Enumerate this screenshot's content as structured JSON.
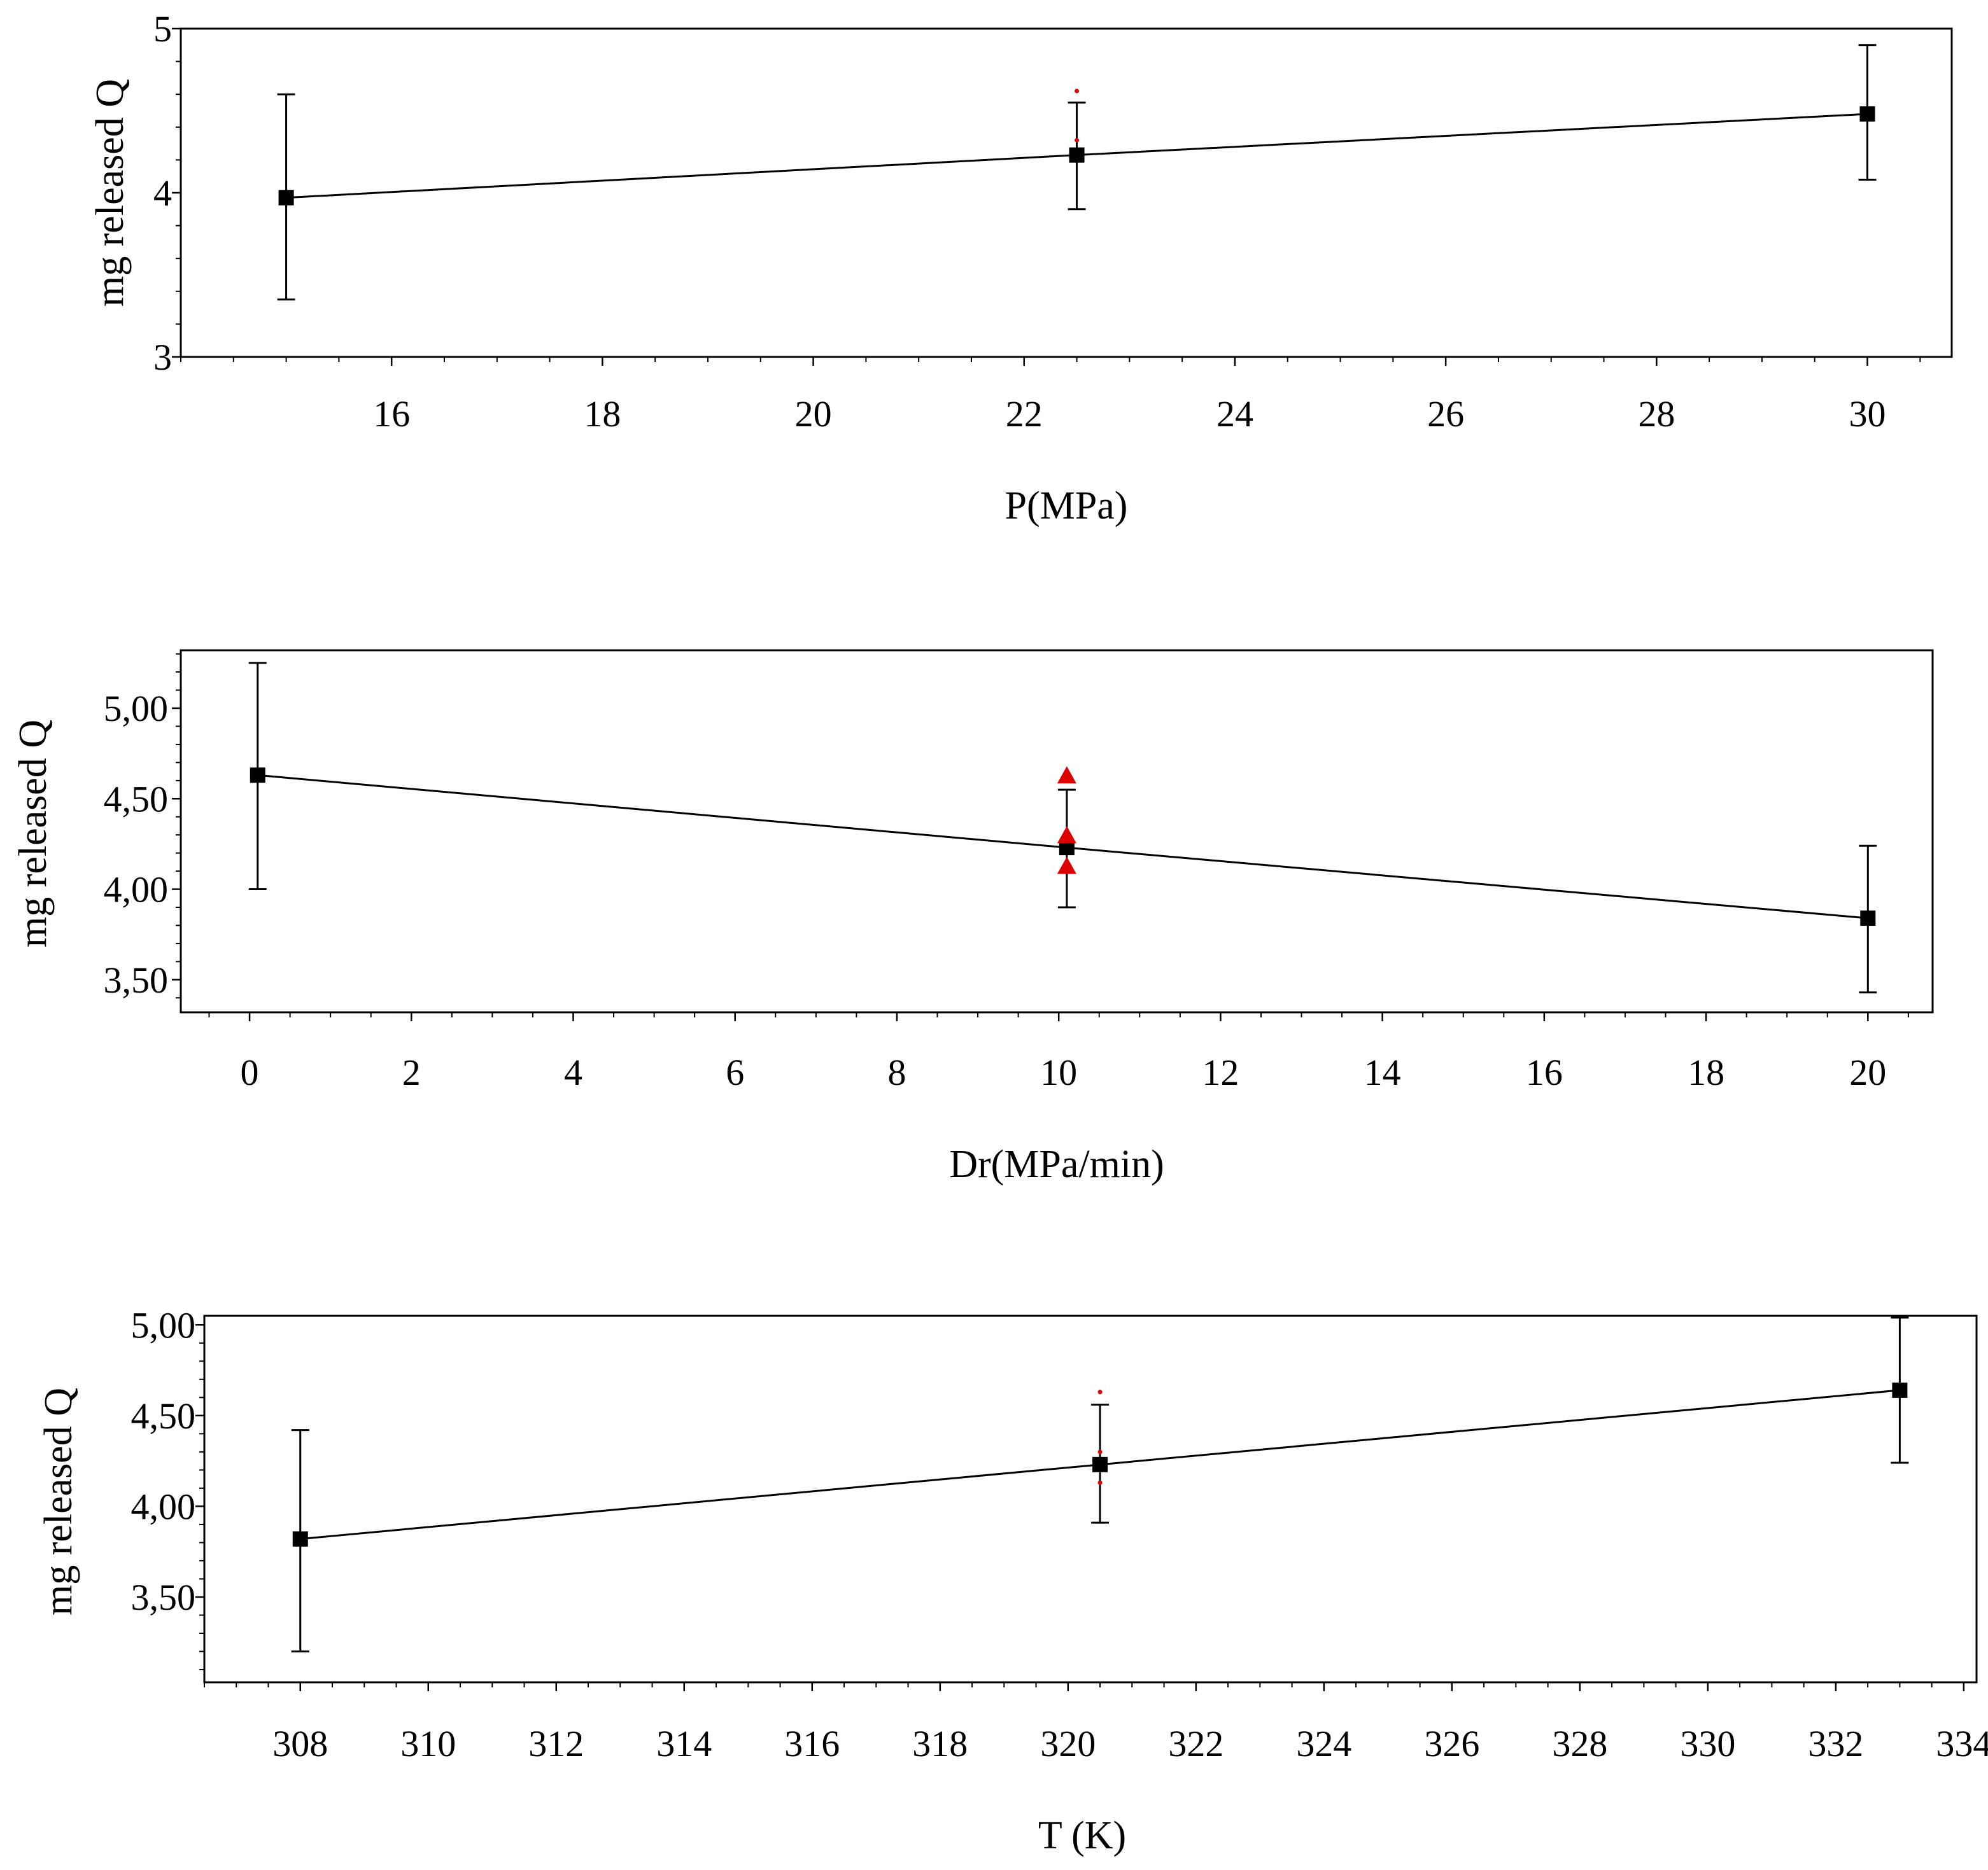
{
  "chart_data": [
    {
      "type": "line",
      "xlabel": "P(MPa)",
      "ylabel": "mg released Q",
      "xlim": [
        14,
        30.8
      ],
      "ylim": [
        3,
        5
      ],
      "x_ticks": [
        16,
        18,
        20,
        22,
        24,
        26,
        28,
        30
      ],
      "x_tick_labels": [
        "16",
        "18",
        "20",
        "22",
        "24",
        "26",
        "28",
        "30"
      ],
      "y_ticks": [
        3,
        4,
        5
      ],
      "y_tick_labels": [
        "3",
        "4",
        "5"
      ],
      "x_minor_step": 0.5,
      "y_minor_step": 0.2,
      "grid": false,
      "series": [
        {
          "x": [
            15,
            22.5,
            30
          ],
          "y": [
            3.97,
            4.23,
            4.48
          ],
          "y_err_low": [
            3.35,
            3.9,
            4.08
          ],
          "y_err_high": [
            4.6,
            4.55,
            4.9
          ],
          "color": "#000000",
          "marker": "square"
        }
      ],
      "observations": [
        {
          "x": 22.5,
          "y": 4.62,
          "color": "#dd0000",
          "marker": "dot"
        },
        {
          "x": 22.5,
          "y": 4.32,
          "color": "#dd0000",
          "marker": "dot"
        }
      ]
    },
    {
      "type": "line",
      "xlabel": "Dr(MPa/min)",
      "ylabel": "mg released Q",
      "xlim": [
        -0.85,
        20.8
      ],
      "ylim": [
        3.32,
        5.32
      ],
      "x_ticks": [
        0,
        2,
        4,
        6,
        8,
        10,
        12,
        14,
        16,
        18,
        20
      ],
      "x_tick_labels": [
        "0",
        "2",
        "4",
        "6",
        "8",
        "10",
        "12",
        "14",
        "16",
        "18",
        "20"
      ],
      "y_ticks": [
        3.5,
        4.0,
        4.5,
        5.0
      ],
      "y_tick_labels": [
        "3,50",
        "4,00",
        "4,50",
        "5,00"
      ],
      "x_minor_step": 0.5,
      "y_minor_step": 0.1,
      "grid": false,
      "series": [
        {
          "x": [
            0.1,
            10.1,
            20
          ],
          "y": [
            4.63,
            4.23,
            3.84
          ],
          "y_err_low": [
            4.0,
            3.9,
            3.43
          ],
          "y_err_high": [
            5.25,
            4.55,
            4.24
          ],
          "color": "#000000",
          "marker": "square"
        }
      ],
      "observations": [
        {
          "x": 10.1,
          "y": 4.63,
          "color": "#dd0000",
          "marker": "triangle"
        },
        {
          "x": 10.1,
          "y": 4.3,
          "color": "#dd0000",
          "marker": "triangle"
        },
        {
          "x": 10.1,
          "y": 4.13,
          "color": "#dd0000",
          "marker": "triangle"
        }
      ]
    },
    {
      "type": "line",
      "xlabel": "T (K)",
      "ylabel": "mg released Q",
      "xlim": [
        306.5,
        334.2
      ],
      "ylim": [
        3.03,
        5.05
      ],
      "x_ticks": [
        308,
        310,
        312,
        314,
        316,
        318,
        320,
        322,
        324,
        326,
        328,
        330,
        332,
        334
      ],
      "x_tick_labels": [
        "308",
        "310",
        "312",
        "314",
        "316",
        "318",
        "320",
        "322",
        "324",
        "326",
        "328",
        "330",
        "332",
        "334"
      ],
      "y_ticks": [
        3.5,
        4.0,
        4.5,
        5.0
      ],
      "y_tick_labels": [
        "3,50",
        "4,00",
        "4,50",
        "5,00"
      ],
      "x_minor_step": 0.5,
      "y_minor_step": 0.1,
      "grid": false,
      "series": [
        {
          "x": [
            308,
            320.5,
            333
          ],
          "y": [
            3.82,
            4.23,
            4.64
          ],
          "y_err_low": [
            3.2,
            3.91,
            4.24
          ],
          "y_err_high": [
            4.42,
            4.56,
            5.04
          ],
          "color": "#000000",
          "marker": "square"
        }
      ],
      "observations": [
        {
          "x": 320.5,
          "y": 4.63,
          "color": "#dd0000",
          "marker": "dot"
        },
        {
          "x": 320.5,
          "y": 4.3,
          "color": "#dd0000",
          "marker": "dot"
        },
        {
          "x": 320.5,
          "y": 4.13,
          "color": "#dd0000",
          "marker": "dot"
        }
      ]
    }
  ]
}
